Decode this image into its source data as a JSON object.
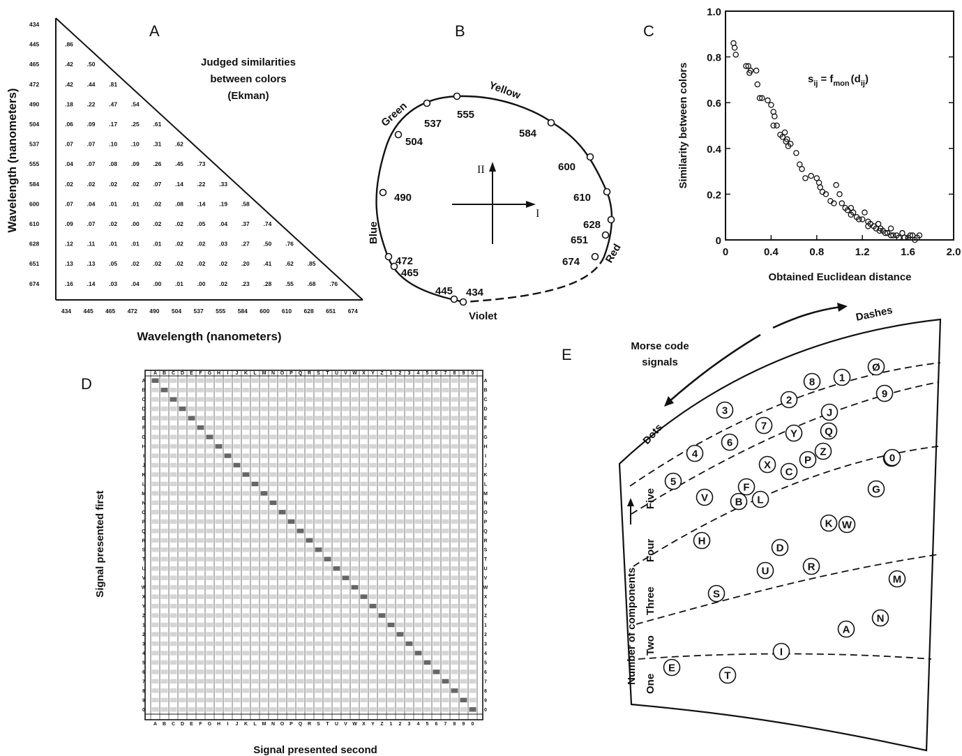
{
  "panels": {
    "A": {
      "letter": "A",
      "title_lines": [
        "Judged similarities",
        "between colors",
        "(Ekman)"
      ],
      "xlabel": "Wavelength (nanometers)",
      "ylabel": "Wavelength (nanometers)",
      "wavelengths": [
        "434",
        "445",
        "465",
        "472",
        "490",
        "504",
        "537",
        "555",
        "584",
        "600",
        "610",
        "628",
        "651",
        "674"
      ],
      "rows": [
        [],
        [
          ".86"
        ],
        [
          ".42",
          ".50"
        ],
        [
          ".42",
          ".44",
          ".81"
        ],
        [
          ".18",
          ".22",
          ".47",
          ".54"
        ],
        [
          ".06",
          ".09",
          ".17",
          ".25",
          ".61"
        ],
        [
          ".07",
          ".07",
          ".10",
          ".10",
          ".31",
          ".62"
        ],
        [
          ".04",
          ".07",
          ".08",
          ".09",
          ".26",
          ".45",
          ".73"
        ],
        [
          ".02",
          ".02",
          ".02",
          ".02",
          ".07",
          ".14",
          ".22",
          ".33"
        ],
        [
          ".07",
          ".04",
          ".01",
          ".01",
          ".02",
          ".08",
          ".14",
          ".19",
          ".58"
        ],
        [
          ".09",
          ".07",
          ".02",
          ".00",
          ".02",
          ".02",
          ".05",
          ".04",
          ".37",
          ".74"
        ],
        [
          ".12",
          ".11",
          ".01",
          ".01",
          ".01",
          ".02",
          ".02",
          ".03",
          ".27",
          ".50",
          ".76"
        ],
        [
          ".13",
          ".13",
          ".05",
          ".02",
          ".02",
          ".02",
          ".02",
          ".02",
          ".20",
          ".41",
          ".62",
          ".85"
        ],
        [
          ".16",
          ".14",
          ".03",
          ".04",
          ".00",
          ".01",
          ".00",
          ".02",
          ".23",
          ".28",
          ".55",
          ".68",
          ".76"
        ]
      ]
    },
    "B": {
      "letter": "B",
      "hue_names": [
        "Green",
        "Yellow",
        "Blue",
        "Red",
        "Violet"
      ],
      "axis_labels": [
        "II",
        "I"
      ],
      "points": [
        "434",
        "445",
        "465",
        "472",
        "490",
        "504",
        "537",
        "555",
        "584",
        "600",
        "610",
        "628",
        "651",
        "674"
      ]
    },
    "C": {
      "letter": "C",
      "ylabel": "Similarity between colors",
      "xlabel": "Obtained Euclidean distance",
      "formula_main": "s",
      "formula_sub1": "ij",
      "formula_mid": "= f",
      "formula_sub2": "mon",
      "formula_end": "(d",
      "formula_sub3": "ij",
      "formula_close": ")",
      "yticks": [
        "0",
        "0.2",
        "0.4",
        "0.6",
        "0.8",
        "1.0"
      ],
      "xticks": [
        "0",
        "0.4",
        "0.8",
        "1.2",
        "1.6",
        "2.0"
      ]
    },
    "D": {
      "letter": "D",
      "xlabel": "Signal presented second",
      "ylabel": "Signal presented first",
      "signals": [
        "A",
        "B",
        "C",
        "D",
        "E",
        "F",
        "G",
        "H",
        "I",
        "J",
        "K",
        "L",
        "M",
        "N",
        "O",
        "P",
        "Q",
        "R",
        "S",
        "T",
        "U",
        "V",
        "W",
        "X",
        "Y",
        "Z",
        "1",
        "2",
        "3",
        "4",
        "5",
        "6",
        "7",
        "8",
        "9",
        "0"
      ]
    },
    "E": {
      "letter": "E",
      "title_lines": [
        "Morse code",
        "signals"
      ],
      "arc_dashes": "Dashes",
      "arc_dots": "Dots",
      "ylabel": "Number of components",
      "bands": [
        "One",
        "Two",
        "Three",
        "Four",
        "Five"
      ],
      "signals": [
        "E",
        "T",
        "I",
        "A",
        "N",
        "M",
        "S",
        "U",
        "R",
        "D",
        "K",
        "W",
        "H",
        "V",
        "B",
        "F",
        "L",
        "X",
        "C",
        "P",
        "Y",
        "Z",
        "G",
        "O",
        "Q",
        "J",
        "5",
        "4",
        "3",
        "6",
        "7",
        "2",
        "8",
        "1",
        "Ø",
        "9",
        "0"
      ]
    }
  },
  "chart_data": [
    {
      "type": "scatter",
      "xlabel": "Obtained Euclidean distance",
      "ylabel": "Similarity between colors",
      "xlim": [
        0,
        2.0
      ],
      "ylim": [
        0,
        1.0
      ],
      "points": [
        [
          0.07,
          0.86
        ],
        [
          0.08,
          0.84
        ],
        [
          0.09,
          0.81
        ],
        [
          0.18,
          0.76
        ],
        [
          0.2,
          0.76
        ],
        [
          0.22,
          0.74
        ],
        [
          0.21,
          0.73
        ],
        [
          0.27,
          0.74
        ],
        [
          0.28,
          0.68
        ],
        [
          0.3,
          0.62
        ],
        [
          0.32,
          0.62
        ],
        [
          0.37,
          0.61
        ],
        [
          0.4,
          0.59
        ],
        [
          0.42,
          0.56
        ],
        [
          0.43,
          0.54
        ],
        [
          0.42,
          0.5
        ],
        [
          0.45,
          0.5
        ],
        [
          0.48,
          0.46
        ],
        [
          0.5,
          0.45
        ],
        [
          0.52,
          0.47
        ],
        [
          0.53,
          0.43
        ],
        [
          0.55,
          0.41
        ],
        [
          0.57,
          0.42
        ],
        [
          0.54,
          0.44
        ],
        [
          0.62,
          0.38
        ],
        [
          0.65,
          0.33
        ],
        [
          0.67,
          0.31
        ],
        [
          0.7,
          0.27
        ],
        [
          0.75,
          0.28
        ],
        [
          0.8,
          0.27
        ],
        [
          0.82,
          0.25
        ],
        [
          0.83,
          0.23
        ],
        [
          0.85,
          0.21
        ],
        [
          0.88,
          0.2
        ],
        [
          0.92,
          0.17
        ],
        [
          0.95,
          0.16
        ],
        [
          0.97,
          0.24
        ],
        [
          1.0,
          0.2
        ],
        [
          1.02,
          0.16
        ],
        [
          1.05,
          0.14
        ],
        [
          1.07,
          0.13
        ],
        [
          1.1,
          0.14
        ],
        [
          1.12,
          0.12
        ],
        [
          1.15,
          0.1
        ],
        [
          1.17,
          0.09
        ],
        [
          1.2,
          0.09
        ],
        [
          1.22,
          0.12
        ],
        [
          1.25,
          0.08
        ],
        [
          1.27,
          0.07
        ],
        [
          1.3,
          0.06
        ],
        [
          1.32,
          0.05
        ],
        [
          1.34,
          0.07
        ],
        [
          1.36,
          0.05
        ],
        [
          1.38,
          0.04
        ],
        [
          1.4,
          0.03
        ],
        [
          1.42,
          0.03
        ],
        [
          1.45,
          0.05
        ],
        [
          1.47,
          0.02
        ],
        [
          1.5,
          0.02
        ],
        [
          1.52,
          0.01
        ],
        [
          1.55,
          0.03
        ],
        [
          1.57,
          0.01
        ],
        [
          1.6,
          0.01
        ],
        [
          1.62,
          0.02
        ],
        [
          1.64,
          0.02
        ],
        [
          1.66,
          0.0
        ],
        [
          1.68,
          0.01
        ],
        [
          1.7,
          0.02
        ],
        [
          1.1,
          0.11
        ],
        [
          1.25,
          0.06
        ],
        [
          1.35,
          0.04
        ],
        [
          1.45,
          0.02
        ]
      ]
    }
  ]
}
